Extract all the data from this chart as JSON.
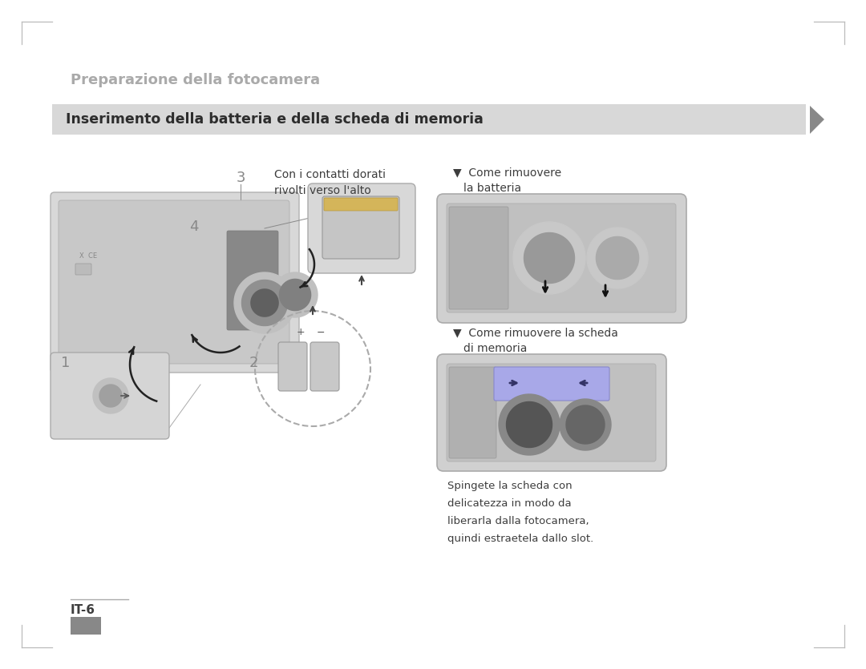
{
  "bg_color": "#ffffff",
  "page_title": "Preparazione della fotocamera",
  "page_title_color": "#aaaaaa",
  "page_title_fontsize": 13,
  "section_bar_color": "#d8d8d8",
  "section_title": "Inserimento della batteria e della scheda di memoria",
  "section_title_color": "#2d2d2d",
  "section_title_fontsize": 12.5,
  "label3_caption1": "Con i contatti dorati",
  "label3_caption2": "rivolti verso l'alto",
  "right_title1_line1": "▼  Come rimuovere",
  "right_title1_line2": "    la batteria",
  "right_title2_line1": "▼  Come rimuovere la scheda",
  "right_title2_line2": "    di memoria",
  "bottom_text_lines": [
    "Spingete la scheda con",
    "delicatezza in modo da",
    "liberarla dalla fotocamera,",
    "quindi estraetela dallo slot."
  ],
  "page_number": "IT-6",
  "font_color_dark": "#3d3d3d",
  "corner_color": "#bbbbbb"
}
